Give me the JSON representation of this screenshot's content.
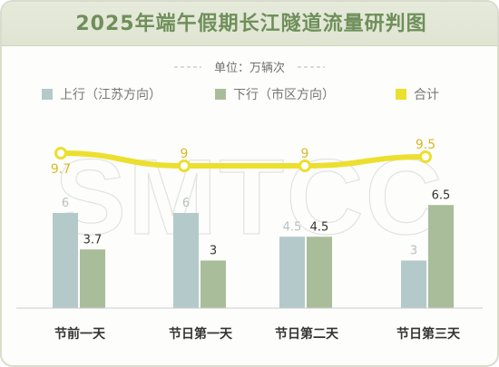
{
  "title": "2025年端午假期长江隧道流量研判图",
  "watermark": "SMTCC",
  "chart_data": {
    "type": "bar",
    "unit_label": "单位：万辆次",
    "categories": [
      "节前一天",
      "节日第一天",
      "节日第二天",
      "节日第三天"
    ],
    "series": [
      {
        "name": "上行（江苏方向）",
        "kind": "bar",
        "color": "#b4c9ca",
        "label_color": "#b6c2c2",
        "values": [
          6,
          6,
          4.5,
          3
        ]
      },
      {
        "name": "下行（市区方向）",
        "kind": "bar",
        "color": "#a9bd9a",
        "label_color": "#333333",
        "values": [
          3.7,
          3,
          4.5,
          6.5
        ]
      },
      {
        "name": "合计",
        "kind": "line",
        "color": "#ecdf2e",
        "label_color": "#d9b92a",
        "values": [
          9.7,
          9,
          9,
          9.5
        ]
      }
    ]
  }
}
